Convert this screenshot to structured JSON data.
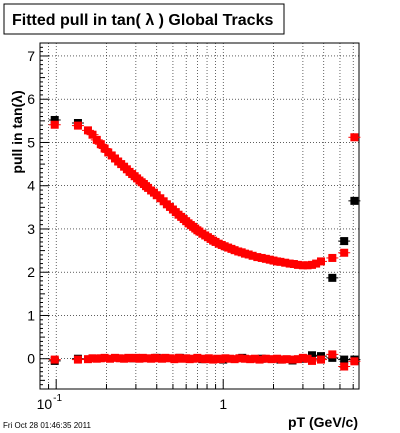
{
  "chart_data": {
    "type": "scatter",
    "title": "Fitted pull in tan( λ )  Global Tracks",
    "xlabel": "pT (GeV/c)",
    "ylabel": "pull in tan(λ)",
    "x_scale": "log",
    "xlim": [
      0.08,
      6.5
    ],
    "ylim": [
      -0.7,
      7.3
    ],
    "x_tick_labels": [
      {
        "value": 0.1,
        "base": "10",
        "exp": "-1"
      },
      {
        "value": 1,
        "text": "1"
      }
    ],
    "y_ticks": [
      0,
      1,
      2,
      3,
      4,
      5,
      6,
      7
    ],
    "grid": true,
    "footer": "Fri Oct 28 01:46:35 2011",
    "colors": {
      "series_black": "#000000",
      "series_red": "#ff0000"
    },
    "series": [
      {
        "color": "#000000",
        "points": [
          [
            0.098,
            5.52
          ],
          [
            0.135,
            5.45
          ],
          [
            4.5,
            1.87
          ],
          [
            5.3,
            2.72
          ],
          [
            6.1,
            3.65
          ],
          [
            0.098,
            -0.05
          ],
          [
            0.135,
            0.0
          ],
          [
            0.29,
            0.01
          ],
          [
            0.4,
            0.02
          ],
          [
            0.55,
            0.02
          ],
          [
            0.75,
            -0.01
          ],
          [
            1.0,
            -0.02
          ],
          [
            1.3,
            0.02
          ],
          [
            1.7,
            0.0
          ],
          [
            2.2,
            -0.02
          ],
          [
            2.6,
            -0.04
          ],
          [
            3.0,
            0.0
          ],
          [
            3.4,
            0.08
          ],
          [
            3.85,
            0.06
          ],
          [
            4.5,
            0.02
          ],
          [
            5.3,
            -0.02
          ],
          [
            6.1,
            -0.02
          ]
        ]
      },
      {
        "color": "#ff0000",
        "points": [
          [
            0.098,
            5.41
          ],
          [
            0.135,
            5.39
          ],
          [
            0.155,
            5.28
          ],
          [
            0.165,
            5.18
          ],
          [
            0.175,
            5.06
          ],
          [
            0.185,
            4.96
          ],
          [
            0.195,
            4.86
          ],
          [
            0.205,
            4.77
          ],
          [
            0.215,
            4.7
          ],
          [
            0.225,
            4.63
          ],
          [
            0.235,
            4.56
          ],
          [
            0.245,
            4.5
          ],
          [
            0.255,
            4.44
          ],
          [
            0.265,
            4.38
          ],
          [
            0.275,
            4.32
          ],
          [
            0.285,
            4.27
          ],
          [
            0.295,
            4.22
          ],
          [
            0.305,
            4.17
          ],
          [
            0.315,
            4.12
          ],
          [
            0.325,
            4.08
          ],
          [
            0.335,
            4.04
          ],
          [
            0.345,
            3.99
          ],
          [
            0.355,
            3.95
          ],
          [
            0.37,
            3.89
          ],
          [
            0.385,
            3.84
          ],
          [
            0.4,
            3.78
          ],
          [
            0.42,
            3.71
          ],
          [
            0.44,
            3.64
          ],
          [
            0.46,
            3.57
          ],
          [
            0.48,
            3.51
          ],
          [
            0.5,
            3.45
          ],
          [
            0.52,
            3.39
          ],
          [
            0.54,
            3.33
          ],
          [
            0.56,
            3.28
          ],
          [
            0.58,
            3.23
          ],
          [
            0.6,
            3.18
          ],
          [
            0.62,
            3.13
          ],
          [
            0.64,
            3.09
          ],
          [
            0.66,
            3.05
          ],
          [
            0.68,
            3.01
          ],
          [
            0.7,
            2.97
          ],
          [
            0.72,
            2.94
          ],
          [
            0.75,
            2.89
          ],
          [
            0.78,
            2.85
          ],
          [
            0.81,
            2.81
          ],
          [
            0.84,
            2.77
          ],
          [
            0.87,
            2.73
          ],
          [
            0.9,
            2.7
          ],
          [
            0.94,
            2.66
          ],
          [
            0.98,
            2.63
          ],
          [
            1.02,
            2.6
          ],
          [
            1.07,
            2.57
          ],
          [
            1.12,
            2.54
          ],
          [
            1.17,
            2.51
          ],
          [
            1.23,
            2.48
          ],
          [
            1.29,
            2.46
          ],
          [
            1.35,
            2.43
          ],
          [
            1.42,
            2.41
          ],
          [
            1.5,
            2.38
          ],
          [
            1.6,
            2.35
          ],
          [
            1.7,
            2.33
          ],
          [
            1.8,
            2.31
          ],
          [
            1.9,
            2.29
          ],
          [
            2.0,
            2.27
          ],
          [
            2.1,
            2.25
          ],
          [
            2.2,
            2.24
          ],
          [
            2.35,
            2.22
          ],
          [
            2.5,
            2.2
          ],
          [
            2.65,
            2.19
          ],
          [
            2.8,
            2.17
          ],
          [
            3.0,
            2.16
          ],
          [
            3.2,
            2.16
          ],
          [
            3.4,
            2.17
          ],
          [
            3.6,
            2.2
          ],
          [
            3.85,
            2.25
          ],
          [
            4.5,
            2.33
          ],
          [
            5.3,
            2.45
          ],
          [
            6.1,
            5.12
          ],
          [
            0.098,
            -0.02
          ],
          [
            0.135,
            -0.02
          ],
          [
            0.155,
            -0.01
          ],
          [
            0.165,
            0.01
          ],
          [
            0.175,
            0.0
          ],
          [
            0.185,
            0.01
          ],
          [
            0.195,
            0.02
          ],
          [
            0.21,
            0.0
          ],
          [
            0.225,
            0.02
          ],
          [
            0.24,
            0.01
          ],
          [
            0.255,
            0.0
          ],
          [
            0.27,
            0.02
          ],
          [
            0.285,
            0.01
          ],
          [
            0.3,
            0.02
          ],
          [
            0.315,
            0.0
          ],
          [
            0.33,
            0.02
          ],
          [
            0.35,
            0.01
          ],
          [
            0.37,
            0.0
          ],
          [
            0.39,
            0.02
          ],
          [
            0.41,
            0.01
          ],
          [
            0.43,
            0.0
          ],
          [
            0.45,
            0.02
          ],
          [
            0.48,
            0.01
          ],
          [
            0.51,
            -0.01
          ],
          [
            0.54,
            0.02
          ],
          [
            0.57,
            0.0
          ],
          [
            0.6,
            0.01
          ],
          [
            0.63,
            -0.01
          ],
          [
            0.66,
            0.0
          ],
          [
            0.7,
            0.02
          ],
          [
            0.74,
            0.0
          ],
          [
            0.78,
            -0.01
          ],
          [
            0.82,
            0.01
          ],
          [
            0.87,
            -0.02
          ],
          [
            0.92,
            0.0
          ],
          [
            0.97,
            -0.01
          ],
          [
            1.03,
            0.01
          ],
          [
            1.1,
            0.0
          ],
          [
            1.17,
            -0.01
          ],
          [
            1.25,
            0.01
          ],
          [
            1.35,
            0.0
          ],
          [
            1.45,
            -0.01
          ],
          [
            1.55,
            0.0
          ],
          [
            1.65,
            -0.02
          ],
          [
            1.8,
            0.0
          ],
          [
            1.95,
            -0.01
          ],
          [
            2.1,
            0.0
          ],
          [
            2.25,
            -0.02
          ],
          [
            2.4,
            -0.01
          ],
          [
            2.6,
            -0.02
          ],
          [
            2.8,
            -0.01
          ],
          [
            3.0,
            0.02
          ],
          [
            3.2,
            0.0
          ],
          [
            3.4,
            -0.05
          ],
          [
            3.85,
            -0.02
          ],
          [
            4.5,
            0.1
          ],
          [
            5.3,
            -0.18
          ],
          [
            6.1,
            -0.06
          ]
        ]
      }
    ]
  }
}
